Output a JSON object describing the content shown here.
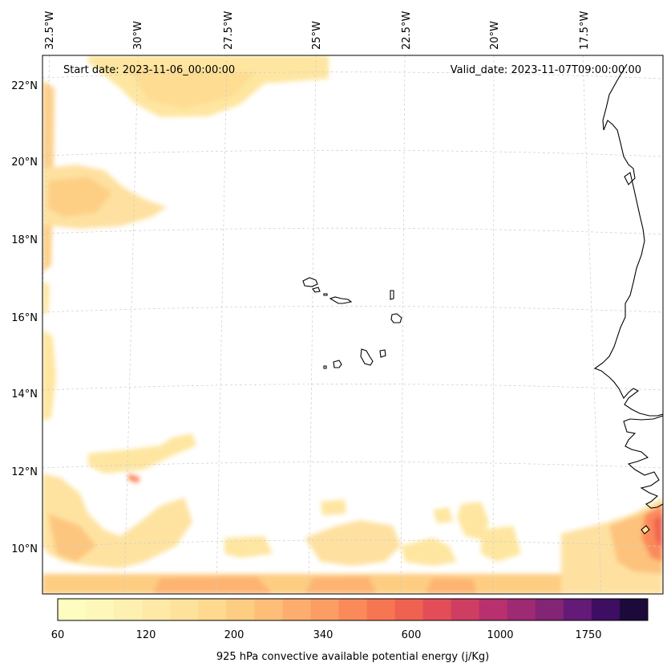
{
  "header": {
    "start_date": "Start date: 2023-11-06_00:00:00",
    "valid_date": "Valid_date: 2023-11-07T09:00:00.00"
  },
  "lon_labels": [
    "32.5°W",
    "30°W",
    "27.5°W",
    "25°W",
    "22.5°W",
    "20°W",
    "17.5°W"
  ],
  "lat_labels": [
    "22°N",
    "20°N",
    "18°N",
    "16°N",
    "14°N",
    "12°N",
    "10°N"
  ],
  "colorbar": {
    "label": "925 hPa convective available potential energy (j/Kg)",
    "tick_labels": [
      "60",
      "120",
      "200",
      "340",
      "600",
      "1000",
      "1750"
    ],
    "colors": [
      "#fcfdbf",
      "#fdf7b9",
      "#fef0b0",
      "#feeaa6",
      "#fee29b",
      "#fed98e",
      "#fdcd82",
      "#fdbf78",
      "#fdae6e",
      "#fc9d64",
      "#fb8a5a",
      "#f77652",
      "#ef6250",
      "#e24d57",
      "#cf3d62",
      "#b8306d",
      "#9e2a73",
      "#832475",
      "#641a77",
      "#3e0e63",
      "#1c0b3a"
    ]
  },
  "map": {
    "projection": "conic",
    "lon_range_deg": [
      -33,
      -16
    ],
    "lat_range_deg": [
      9,
      22.8
    ]
  }
}
